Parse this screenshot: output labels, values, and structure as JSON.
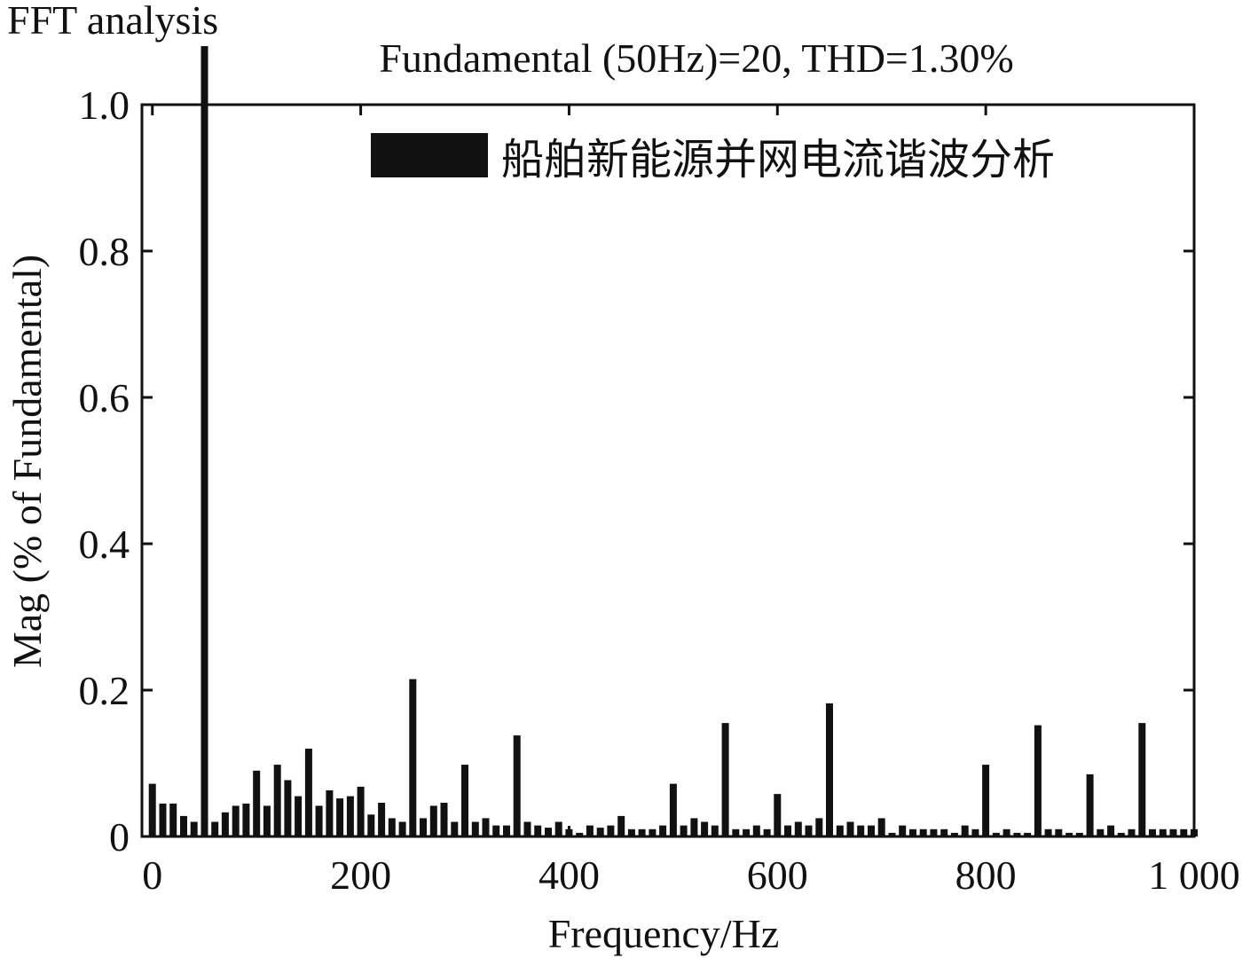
{
  "window_title": "FFT analysis",
  "chart_data": {
    "type": "bar",
    "title": "Fundamental (50Hz)=20, THD=1.30%",
    "xlabel": "Frequency/Hz",
    "ylabel": "Mag (% of Fundamental)",
    "xlim": [
      -10,
      1000
    ],
    "ylim": [
      0,
      1.0
    ],
    "x_ticks": [
      0,
      200,
      400,
      600,
      800,
      1000
    ],
    "x_tick_labels": [
      "0",
      "200",
      "400",
      "600",
      "800",
      "1 000"
    ],
    "y_ticks": [
      0,
      0.2,
      0.4,
      0.6,
      0.8,
      1.0
    ],
    "y_tick_labels": [
      "0",
      "0.2",
      "0.4",
      "0.6",
      "0.8",
      "1.0"
    ],
    "grid": false,
    "legend": {
      "position": "top-right",
      "entries": [
        "船舶新能源并网电流谐波分析"
      ]
    },
    "series": [
      {
        "name": "船舶新能源并网电流谐波分析",
        "color": "#111111",
        "x": [
          0,
          10,
          20,
          30,
          40,
          50,
          60,
          70,
          80,
          90,
          100,
          110,
          120,
          130,
          140,
          150,
          160,
          170,
          180,
          190,
          200,
          210,
          220,
          230,
          240,
          250,
          260,
          270,
          280,
          290,
          300,
          310,
          320,
          330,
          340,
          350,
          360,
          370,
          380,
          390,
          400,
          410,
          420,
          430,
          440,
          450,
          460,
          470,
          480,
          490,
          500,
          510,
          520,
          530,
          540,
          550,
          560,
          570,
          580,
          590,
          600,
          610,
          620,
          630,
          640,
          650,
          660,
          670,
          680,
          690,
          700,
          710,
          720,
          730,
          740,
          750,
          760,
          770,
          780,
          790,
          800,
          810,
          820,
          830,
          840,
          850,
          860,
          870,
          880,
          890,
          900,
          910,
          920,
          930,
          940,
          950,
          960,
          970,
          980,
          990,
          1000
        ],
        "values": [
          0.072,
          0.045,
          0.045,
          0.028,
          0.02,
          1.08,
          0.02,
          0.033,
          0.042,
          0.045,
          0.09,
          0.042,
          0.098,
          0.077,
          0.055,
          0.12,
          0.042,
          0.063,
          0.052,
          0.055,
          0.068,
          0.03,
          0.046,
          0.025,
          0.02,
          0.215,
          0.025,
          0.042,
          0.046,
          0.02,
          0.098,
          0.02,
          0.025,
          0.015,
          0.015,
          0.138,
          0.02,
          0.015,
          0.012,
          0.02,
          0.01,
          0.005,
          0.015,
          0.012,
          0.015,
          0.028,
          0.01,
          0.01,
          0.01,
          0.015,
          0.072,
          0.015,
          0.025,
          0.02,
          0.015,
          0.155,
          0.01,
          0.01,
          0.015,
          0.01,
          0.058,
          0.015,
          0.02,
          0.015,
          0.025,
          0.182,
          0.015,
          0.02,
          0.015,
          0.015,
          0.025,
          0.005,
          0.015,
          0.01,
          0.01,
          0.01,
          0.01,
          0.005,
          0.015,
          0.01,
          0.098,
          0.005,
          0.01,
          0.005,
          0.005,
          0.152,
          0.01,
          0.01,
          0.005,
          0.005,
          0.085,
          0.01,
          0.015,
          0.005,
          0.01,
          0.155,
          0.01,
          0.01,
          0.01,
          0.01,
          0.01
        ]
      }
    ]
  }
}
